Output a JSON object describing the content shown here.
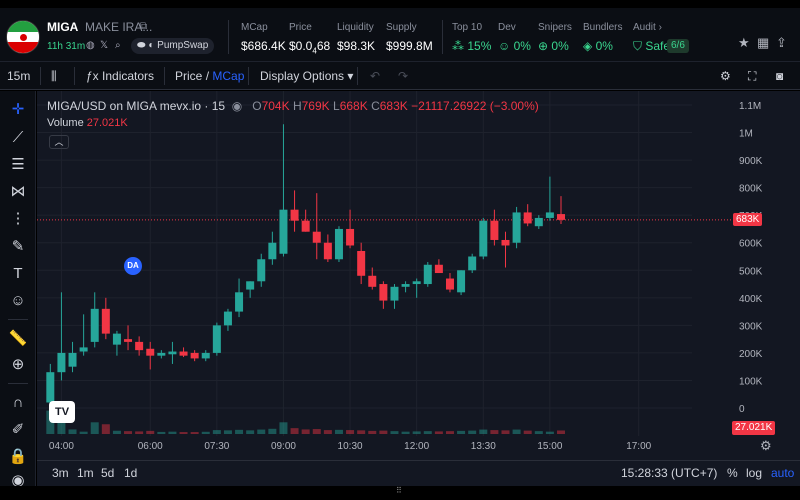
{
  "token": {
    "symbol": "MIGA",
    "name": "MAKE IRA...",
    "age": "11h 31m",
    "dex": "PumpSwap"
  },
  "stats": {
    "mcap": {
      "label": "MCap",
      "value": "$686.4K"
    },
    "price": {
      "label": "Price",
      "prefix": "$0.0",
      "sub": "4",
      "suffix": "68"
    },
    "liquidity": {
      "label": "Liquidity",
      "value": "$98.3K"
    },
    "supply": {
      "label": "Supply",
      "value": "$999.8M"
    },
    "top10": {
      "label": "Top 10",
      "value": "15%"
    },
    "dev": {
      "label": "Dev",
      "value": "0%"
    },
    "snipers": {
      "label": "Snipers",
      "value": "0%"
    },
    "bundlers": {
      "label": "Bundlers",
      "value": "0%"
    },
    "audit": {
      "label": "Audit",
      "safe": "Safe",
      "score": "6/6"
    }
  },
  "toolbar": {
    "interval": "15m",
    "indicators": "Indicators",
    "price": "Price",
    "slash": "/",
    "mcap": "MCap",
    "display_options": "Display Options"
  },
  "legend": {
    "title": "MIGA/USD on MIGA mevx.io · 15",
    "o_label": "O",
    "o": "704K",
    "h_label": "H",
    "h": "769K",
    "l_label": "L",
    "l": "668K",
    "c_label": "C",
    "c": "683K",
    "change": "−21117.26922 (−3.00%)",
    "volume_label": "Volume",
    "volume": "27.021K",
    "da": "DA",
    "tv": "TV"
  },
  "last_price_tag": "683K",
  "last_volume_tag": "27.021K",
  "bottom": {
    "ranges": [
      "3m",
      "1m",
      "5d",
      "1d"
    ],
    "clock": "15:28:33 (UTC+7)",
    "percent": "%",
    "log": "log",
    "auto": "auto"
  },
  "colors": {
    "up": "#26a69a",
    "down": "#f23645",
    "accent": "#2962ff",
    "bg": "#131722"
  },
  "chart_data": {
    "type": "candlestick",
    "title": "MIGA/USD on MIGA mevx.io · 15",
    "y_ticks": [
      "1.1M",
      "1M",
      "900K",
      "800K",
      "700K",
      "600K",
      "500K",
      "400K",
      "300K",
      "200K",
      "100K",
      "0"
    ],
    "y_tick_values": [
      1100000,
      1000000,
      900000,
      800000,
      700000,
      600000,
      500000,
      400000,
      300000,
      200000,
      100000,
      0
    ],
    "x_ticks": [
      "04:00",
      "06:00",
      "07:30",
      "09:00",
      "10:30",
      "12:00",
      "13:30",
      "15:00",
      "17:00"
    ],
    "x_tick_hours": [
      4,
      6,
      7.5,
      9,
      10.5,
      12,
      13.5,
      15,
      17
    ],
    "ylim": [
      -10000,
      1130000
    ],
    "xlim": [
      3.45,
      18.2
    ],
    "last_price": 683000,
    "series": [
      {
        "hour": 3.75,
        "open": 20000,
        "high": 160000,
        "low": 15000,
        "close": 130000,
        "volume": 180000
      },
      {
        "hour": 4.0,
        "open": 130000,
        "high": 420000,
        "low": 100000,
        "close": 200000,
        "volume": 200000
      },
      {
        "hour": 4.25,
        "open": 150000,
        "high": 240000,
        "low": 130000,
        "close": 200000,
        "volume": 35000
      },
      {
        "hour": 4.5,
        "open": 205000,
        "high": 340000,
        "low": 190000,
        "close": 220000,
        "volume": 18000
      },
      {
        "hour": 4.75,
        "open": 240000,
        "high": 420000,
        "low": 220000,
        "close": 360000,
        "volume": 90000
      },
      {
        "hour": 5.0,
        "open": 360000,
        "high": 400000,
        "low": 250000,
        "close": 270000,
        "volume": 75000
      },
      {
        "hour": 5.25,
        "open": 230000,
        "high": 280000,
        "low": 190000,
        "close": 270000,
        "volume": 25000
      },
      {
        "hour": 5.5,
        "open": 250000,
        "high": 300000,
        "low": 210000,
        "close": 240000,
        "volume": 22000
      },
      {
        "hour": 5.75,
        "open": 240000,
        "high": 260000,
        "low": 190000,
        "close": 210000,
        "volume": 20000
      },
      {
        "hour": 6.0,
        "open": 215000,
        "high": 240000,
        "low": 140000,
        "close": 190000,
        "volume": 24000
      },
      {
        "hour": 6.25,
        "open": 190000,
        "high": 210000,
        "low": 180000,
        "close": 200000,
        "volume": 16000
      },
      {
        "hour": 6.5,
        "open": 195000,
        "high": 240000,
        "low": 160000,
        "close": 205000,
        "volume": 18000
      },
      {
        "hour": 6.75,
        "open": 205000,
        "high": 220000,
        "low": 185000,
        "close": 190000,
        "volume": 15000
      },
      {
        "hour": 7.0,
        "open": 200000,
        "high": 210000,
        "low": 170000,
        "close": 180000,
        "volume": 15000
      },
      {
        "hour": 7.25,
        "open": 180000,
        "high": 210000,
        "low": 170000,
        "close": 200000,
        "volume": 17000
      },
      {
        "hour": 7.5,
        "open": 200000,
        "high": 310000,
        "low": 190000,
        "close": 300000,
        "volume": 30000
      },
      {
        "hour": 7.75,
        "open": 300000,
        "high": 360000,
        "low": 280000,
        "close": 350000,
        "volume": 28000
      },
      {
        "hour": 8.0,
        "open": 350000,
        "high": 470000,
        "low": 330000,
        "close": 420000,
        "volume": 32000
      },
      {
        "hour": 8.25,
        "open": 430000,
        "high": 460000,
        "low": 400000,
        "close": 460000,
        "volume": 28000
      },
      {
        "hour": 8.5,
        "open": 460000,
        "high": 560000,
        "low": 440000,
        "close": 540000,
        "volume": 34000
      },
      {
        "hour": 8.75,
        "open": 540000,
        "high": 640000,
        "low": 520000,
        "close": 600000,
        "volume": 40000
      },
      {
        "hour": 9.0,
        "open": 560000,
        "high": 1030000,
        "low": 550000,
        "close": 720000,
        "volume": 90000
      },
      {
        "hour": 9.25,
        "open": 720000,
        "high": 790000,
        "low": 640000,
        "close": 680000,
        "volume": 45000
      },
      {
        "hour": 9.5,
        "open": 680000,
        "high": 720000,
        "low": 640000,
        "close": 640000,
        "volume": 35000
      },
      {
        "hour": 9.75,
        "open": 640000,
        "high": 780000,
        "low": 540000,
        "close": 600000,
        "volume": 38000
      },
      {
        "hour": 10.0,
        "open": 600000,
        "high": 630000,
        "low": 530000,
        "close": 540000,
        "volume": 30000
      },
      {
        "hour": 10.25,
        "open": 540000,
        "high": 660000,
        "low": 530000,
        "close": 650000,
        "volume": 32000
      },
      {
        "hour": 10.5,
        "open": 650000,
        "high": 720000,
        "low": 580000,
        "close": 590000,
        "volume": 30000
      },
      {
        "hour": 10.75,
        "open": 570000,
        "high": 600000,
        "low": 450000,
        "close": 480000,
        "volume": 28000
      },
      {
        "hour": 11.0,
        "open": 480000,
        "high": 510000,
        "low": 430000,
        "close": 440000,
        "volume": 24000
      },
      {
        "hour": 11.25,
        "open": 450000,
        "high": 460000,
        "low": 360000,
        "close": 390000,
        "volume": 26000
      },
      {
        "hour": 11.5,
        "open": 390000,
        "high": 450000,
        "low": 360000,
        "close": 440000,
        "volume": 22000
      },
      {
        "hour": 11.75,
        "open": 440000,
        "high": 460000,
        "low": 420000,
        "close": 450000,
        "volume": 18000
      },
      {
        "hour": 12.0,
        "open": 450000,
        "high": 470000,
        "low": 400000,
        "close": 460000,
        "volume": 20000
      },
      {
        "hour": 12.25,
        "open": 450000,
        "high": 530000,
        "low": 440000,
        "close": 520000,
        "volume": 22000
      },
      {
        "hour": 12.5,
        "open": 520000,
        "high": 540000,
        "low": 490000,
        "close": 490000,
        "volume": 20000
      },
      {
        "hour": 12.75,
        "open": 470000,
        "high": 490000,
        "low": 420000,
        "close": 430000,
        "volume": 22000
      },
      {
        "hour": 13.0,
        "open": 420000,
        "high": 500000,
        "low": 410000,
        "close": 500000,
        "volume": 24000
      },
      {
        "hour": 13.25,
        "open": 500000,
        "high": 560000,
        "low": 490000,
        "close": 550000,
        "volume": 26000
      },
      {
        "hour": 13.5,
        "open": 550000,
        "high": 690000,
        "low": 540000,
        "close": 680000,
        "volume": 34000
      },
      {
        "hour": 13.75,
        "open": 680000,
        "high": 720000,
        "low": 590000,
        "close": 610000,
        "volume": 30000
      },
      {
        "hour": 14.0,
        "open": 610000,
        "high": 640000,
        "low": 510000,
        "close": 590000,
        "volume": 28000
      },
      {
        "hour": 14.25,
        "open": 600000,
        "high": 730000,
        "low": 580000,
        "close": 710000,
        "volume": 34000
      },
      {
        "hour": 14.5,
        "open": 710000,
        "high": 740000,
        "low": 660000,
        "close": 670000,
        "volume": 26000
      },
      {
        "hour": 14.75,
        "open": 660000,
        "high": 700000,
        "low": 650000,
        "close": 690000,
        "volume": 22000
      },
      {
        "hour": 15.0,
        "open": 690000,
        "high": 840000,
        "low": 680000,
        "close": 710000,
        "volume": 18000
      },
      {
        "hour": 15.25,
        "open": 704000,
        "high": 769000,
        "low": 668000,
        "close": 683000,
        "volume": 27021
      }
    ]
  }
}
